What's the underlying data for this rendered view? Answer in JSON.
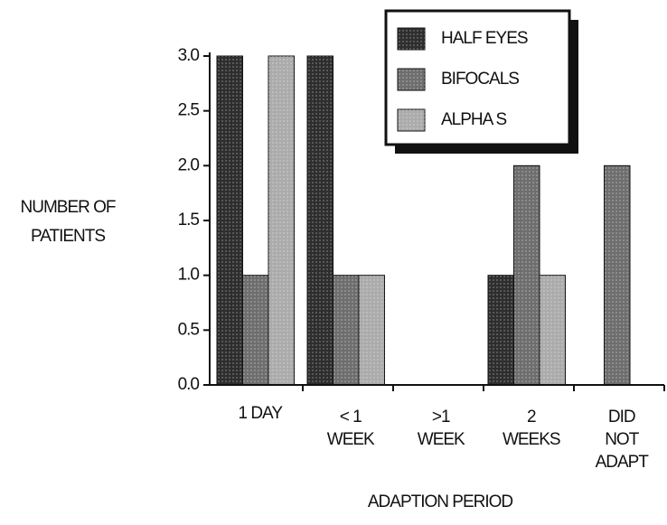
{
  "chart_data": {
    "type": "bar",
    "categories": [
      "1 DAY",
      "< 1\nWEEK",
      ">1\nWEEK",
      "2\nWEEKS",
      "DID\nNOT\nADAPT"
    ],
    "series": [
      {
        "name": "HALF EYES",
        "color": "#2e2e2e",
        "values": [
          3,
          3,
          0,
          1,
          0
        ]
      },
      {
        "name": "BIFOCALS",
        "color": "#6e6e6e",
        "values": [
          1,
          1,
          0,
          2,
          2
        ]
      },
      {
        "name": "ALPHA S",
        "color": "#ababab",
        "values": [
          3,
          1,
          0,
          1,
          0
        ]
      }
    ],
    "ylim": [
      0,
      3
    ],
    "yticks": [
      {
        "value": 0,
        "label": "0.0"
      },
      {
        "value": 0.5,
        "label": "0.5"
      },
      {
        "value": 1,
        "label": "1.0"
      },
      {
        "value": 1.5,
        "label": "1.5"
      },
      {
        "value": 2,
        "label": "2.0"
      },
      {
        "value": 2.5,
        "label": "2.5"
      },
      {
        "value": 3,
        "label": "3.0"
      }
    ],
    "ylabel": "NUMBER OF\nPATIENTS",
    "xlabel": "ADAPTION PERIOD",
    "legend": "top-right"
  }
}
